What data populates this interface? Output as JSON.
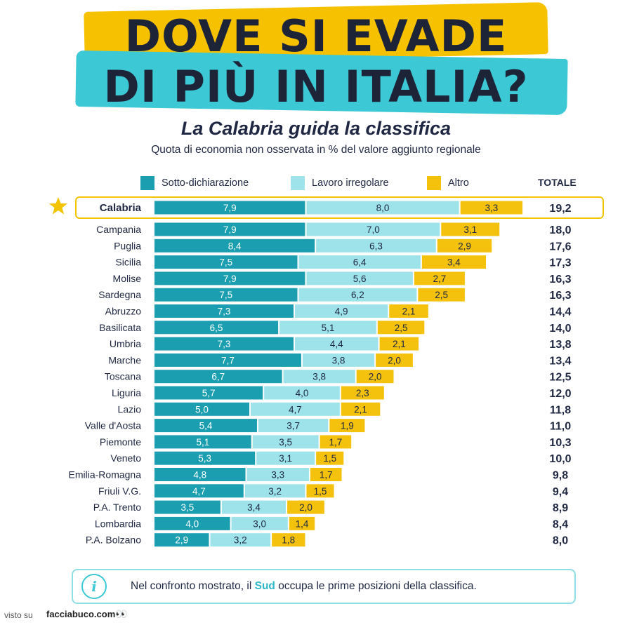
{
  "header": {
    "title_line1": "DOVE SI EVADE",
    "title_line2": "DI PIÙ IN ITALIA?",
    "subtitle": "La Calabria guida la classifica",
    "caption": "Quota di economia non osservata in % del valore aggiunto regionale"
  },
  "legend": {
    "items": [
      {
        "label": "Sotto-dichiarazione",
        "color": "#1a9eb0"
      },
      {
        "label": "Lavoro irregolare",
        "color": "#9ee3ea"
      },
      {
        "label": "Altro",
        "color": "#f4c20d"
      }
    ],
    "total_label": "TOTALE"
  },
  "colors": {
    "highlight_border": "#f3c400",
    "star": "#f3c400"
  },
  "chart_data": {
    "type": "bar",
    "stacked": true,
    "orientation": "horizontal",
    "highlighted_category": "Calabria",
    "categories": [
      "Calabria",
      "Campania",
      "Puglia",
      "Sicilia",
      "Molise",
      "Sardegna",
      "Abruzzo",
      "Basilicata",
      "Umbria",
      "Marche",
      "Toscana",
      "Liguria",
      "Lazio",
      "Valle d'Aosta",
      "Piemonte",
      "Veneto",
      "Emilia-Romagna",
      "Friuli V.G.",
      "P.A. Trento",
      "Lombardia",
      "P.A. Bolzano"
    ],
    "series": [
      {
        "name": "Sotto-dichiarazione",
        "values": [
          "7,9",
          "7,9",
          "8,4",
          "7,5",
          "7,9",
          "7,5",
          "7,3",
          "6,5",
          "7,3",
          "7,7",
          "6,7",
          "5,7",
          "5,0",
          "5,4",
          "5,1",
          "5,3",
          "4,8",
          "4,7",
          "3,5",
          "4,0",
          "2,9"
        ]
      },
      {
        "name": "Lavoro irregolare",
        "values": [
          "8,0",
          "7,0",
          "6,3",
          "6,4",
          "5,6",
          "6,2",
          "4,9",
          "5,1",
          "4,4",
          "3,8",
          "3,8",
          "4,0",
          "4,7",
          "3,7",
          "3,5",
          "3,1",
          "3,3",
          "3,2",
          "3,4",
          "3,0",
          "3,2"
        ]
      },
      {
        "name": "Altro",
        "values": [
          "3,3",
          "3,1",
          "2,9",
          "3,4",
          "2,7",
          "2,5",
          "2,1",
          "2,5",
          "2,1",
          "2,0",
          "2,0",
          "2,3",
          "2,1",
          "1,9",
          "1,7",
          "1,5",
          "1,7",
          "1,5",
          "2,0",
          "1,4",
          "1,8"
        ]
      }
    ],
    "totals": [
      "19,2",
      "18,0",
      "17,6",
      "17,3",
      "16,3",
      "16,3",
      "14,4",
      "14,0",
      "13,8",
      "13,4",
      "12,5",
      "12,0",
      "11,8",
      "11,0",
      "10,3",
      "10,0",
      "9,8",
      "9,4",
      "8,9",
      "8,4",
      "8,0"
    ]
  },
  "info": {
    "text_before": "Nel confronto mostrato, il ",
    "text_highlight": "Sud",
    "text_after": " occupa le prime posizioni della classifica."
  },
  "footer": {
    "visto": "visto su",
    "site": "facciabuco.com"
  }
}
